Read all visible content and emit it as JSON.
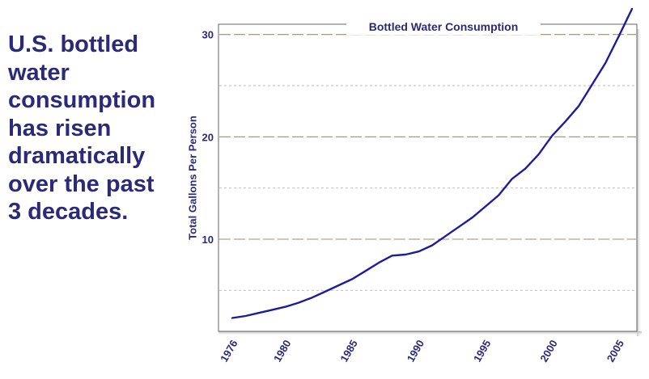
{
  "headline": "U.S. bottled water consumption has risen dramatically over the past 3 decades.",
  "chart_data": {
    "type": "line",
    "title": "Bottled Water Consumption",
    "xlabel": "",
    "ylabel": "Total Gallons  Per Person",
    "xlim": [
      1976,
      2006
    ],
    "ylim": [
      1,
      31
    ],
    "x_ticks": [
      "1976",
      "1980",
      "1985",
      "1990",
      "1995",
      "2000",
      "2005"
    ],
    "y_ticks": [
      "10",
      "20",
      "30"
    ],
    "grid": "horizontal dashed at 5-unit intervals",
    "series": [
      {
        "color": "#1c1c9e",
        "x": [
          1976,
          1977,
          1978,
          1979,
          1980,
          1981,
          1982,
          1983,
          1984,
          1985,
          1986,
          1987,
          1988,
          1989,
          1990,
          1991,
          1992,
          1993,
          1994,
          1995,
          1996,
          1997,
          1998,
          1999,
          2000,
          2001,
          2002,
          2003,
          2004,
          2005,
          2006
        ],
        "y": [
          2.3,
          2.5,
          2.8,
          3.1,
          3.4,
          3.8,
          4.3,
          4.9,
          5.5,
          6.1,
          6.9,
          7.7,
          8.4,
          8.5,
          8.8,
          9.4,
          10.3,
          11.2,
          12.1,
          13.2,
          14.3,
          15.9,
          16.9,
          18.3,
          20.1,
          21.5,
          23.0,
          25.1,
          27.2,
          29.8,
          32.5
        ]
      }
    ]
  }
}
